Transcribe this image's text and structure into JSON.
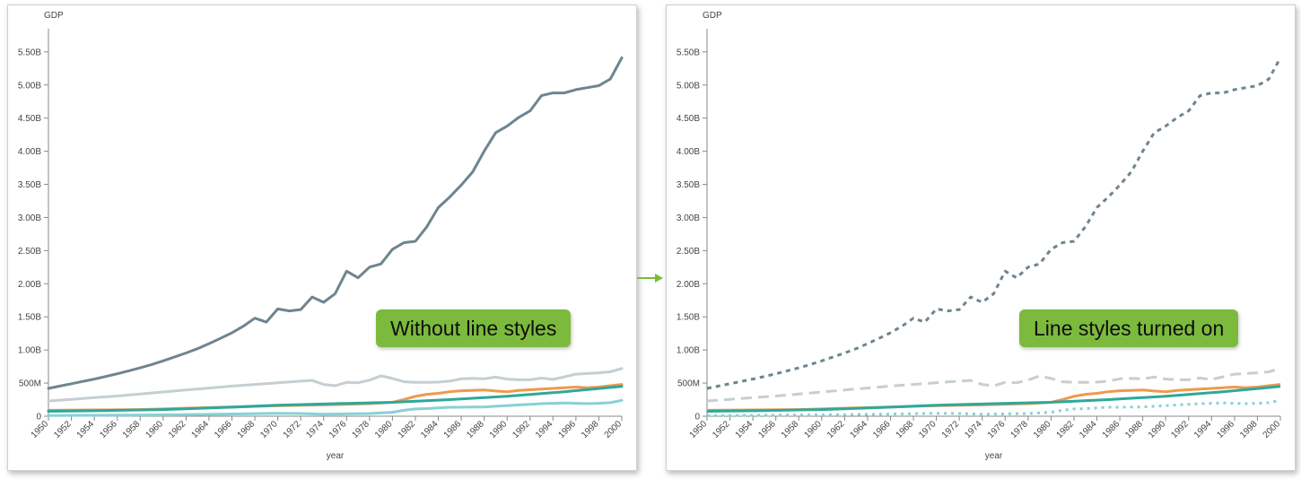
{
  "chart_data": [
    {
      "type": "line",
      "line_styles": false,
      "ylabel": "GDP",
      "xlabel": "year",
      "annotation": "Without line styles",
      "xlim": [
        1950,
        2000
      ],
      "ylim": [
        0,
        5850
      ],
      "x_ticks": [
        1950,
        1952,
        1954,
        1956,
        1958,
        1960,
        1962,
        1964,
        1966,
        1968,
        1970,
        1972,
        1974,
        1976,
        1978,
        1980,
        1982,
        1984,
        1986,
        1988,
        1990,
        1992,
        1994,
        1996,
        1998,
        2000
      ],
      "y_ticks": [
        0,
        500,
        1000,
        1500,
        2000,
        2500,
        3000,
        3500,
        4000,
        4500,
        5000,
        5500
      ],
      "y_tick_labels": [
        "0",
        "500M",
        "1.00B",
        "1.50B",
        "2.00B",
        "2.50B",
        "3.00B",
        "3.50B",
        "4.00B",
        "4.50B",
        "5.00B",
        "5.50B"
      ],
      "grid": false
    },
    {
      "type": "line",
      "line_styles": true,
      "ylabel": "GDP",
      "xlabel": "year",
      "annotation": "Line styles turned on",
      "xlim": [
        1950,
        2000
      ],
      "ylim": [
        0,
        5850
      ],
      "x_ticks": [
        1950,
        1952,
        1954,
        1956,
        1958,
        1960,
        1962,
        1964,
        1966,
        1968,
        1970,
        1972,
        1974,
        1976,
        1978,
        1980,
        1982,
        1984,
        1986,
        1988,
        1990,
        1992,
        1994,
        1996,
        1998,
        2000
      ],
      "y_ticks": [
        0,
        500,
        1000,
        1500,
        2000,
        2500,
        3000,
        3500,
        4000,
        4500,
        5000,
        5500
      ],
      "y_tick_labels": [
        "0",
        "500M",
        "1.00B",
        "1.50B",
        "2.00B",
        "2.50B",
        "3.00B",
        "3.50B",
        "4.00B",
        "4.50B",
        "5.00B",
        "5.50B"
      ],
      "grid": false
    }
  ],
  "series": [
    {
      "color": "#6e858f",
      "dash": "short-dash",
      "x": [
        1950,
        1951,
        1952,
        1953,
        1954,
        1955,
        1956,
        1957,
        1958,
        1959,
        1960,
        1961,
        1962,
        1963,
        1964,
        1965,
        1966,
        1967,
        1968,
        1969,
        1970,
        1971,
        1972,
        1973,
        1974,
        1975,
        1976,
        1977,
        1978,
        1979,
        1980,
        1981,
        1982,
        1983,
        1984,
        1985,
        1986,
        1987,
        1988,
        1989,
        1990,
        1991,
        1992,
        1993,
        1994,
        1995,
        1996,
        1997,
        1998,
        1999,
        2000
      ],
      "values": [
        420,
        455,
        490,
        525,
        560,
        600,
        640,
        685,
        730,
        780,
        835,
        895,
        955,
        1020,
        1095,
        1175,
        1260,
        1360,
        1480,
        1420,
        1620,
        1590,
        1610,
        1800,
        1720,
        1850,
        2190,
        2090,
        2250,
        2300,
        2520,
        2620,
        2640,
        2860,
        3150,
        3310,
        3490,
        3690,
        4000,
        4280,
        4380,
        4510,
        4610,
        4840,
        4880,
        4880,
        4930,
        4960,
        4990,
        5090,
        5410
      ]
    },
    {
      "color": "#c5ced3",
      "dash": "long-dash",
      "x": [
        1950,
        1952,
        1954,
        1956,
        1958,
        1960,
        1962,
        1964,
        1966,
        1968,
        1970,
        1972,
        1973,
        1974,
        1975,
        1976,
        1977,
        1978,
        1979,
        1980,
        1981,
        1982,
        1983,
        1984,
        1985,
        1986,
        1987,
        1988,
        1989,
        1990,
        1991,
        1992,
        1993,
        1994,
        1995,
        1996,
        1997,
        1998,
        1999,
        2000
      ],
      "values": [
        230,
        255,
        280,
        305,
        335,
        365,
        395,
        425,
        455,
        480,
        505,
        530,
        540,
        480,
        460,
        510,
        505,
        545,
        610,
        570,
        520,
        510,
        510,
        515,
        530,
        565,
        570,
        565,
        590,
        560,
        550,
        550,
        575,
        555,
        595,
        635,
        645,
        655,
        670,
        720
      ]
    },
    {
      "color": "#ee9a4c",
      "dash": "solid",
      "x": [
        1950,
        1954,
        1958,
        1962,
        1966,
        1970,
        1974,
        1978,
        1980,
        1981,
        1982,
        1983,
        1984,
        1985,
        1986,
        1987,
        1988,
        1989,
        1990,
        1991,
        1992,
        1993,
        1994,
        1995,
        1996,
        1997,
        1998,
        1999,
        2000
      ],
      "values": [
        90,
        95,
        100,
        120,
        140,
        160,
        170,
        190,
        210,
        250,
        300,
        330,
        345,
        370,
        385,
        390,
        395,
        380,
        370,
        390,
        400,
        410,
        420,
        430,
        440,
        430,
        440,
        460,
        480
      ]
    },
    {
      "color": "#2ea89c",
      "dash": "solid",
      "x": [
        1950,
        1955,
        1960,
        1965,
        1970,
        1975,
        1980,
        1985,
        1990,
        1995,
        2000
      ],
      "values": [
        75,
        85,
        100,
        130,
        165,
        190,
        210,
        250,
        300,
        370,
        450
      ]
    },
    {
      "color": "#88d1d4",
      "dash": "dotted",
      "x": [
        1950,
        1955,
        1960,
        1965,
        1970,
        1972,
        1974,
        1976,
        1978,
        1980,
        1981,
        1982,
        1983,
        1984,
        1985,
        1986,
        1987,
        1988,
        1989,
        1990,
        1991,
        1992,
        1993,
        1994,
        1995,
        1996,
        1997,
        1998,
        1999,
        2000
      ],
      "values": [
        10,
        15,
        20,
        30,
        45,
        40,
        30,
        35,
        40,
        60,
        90,
        110,
        115,
        125,
        135,
        135,
        140,
        140,
        150,
        160,
        170,
        180,
        190,
        195,
        200,
        195,
        190,
        195,
        205,
        240
      ]
    }
  ]
}
